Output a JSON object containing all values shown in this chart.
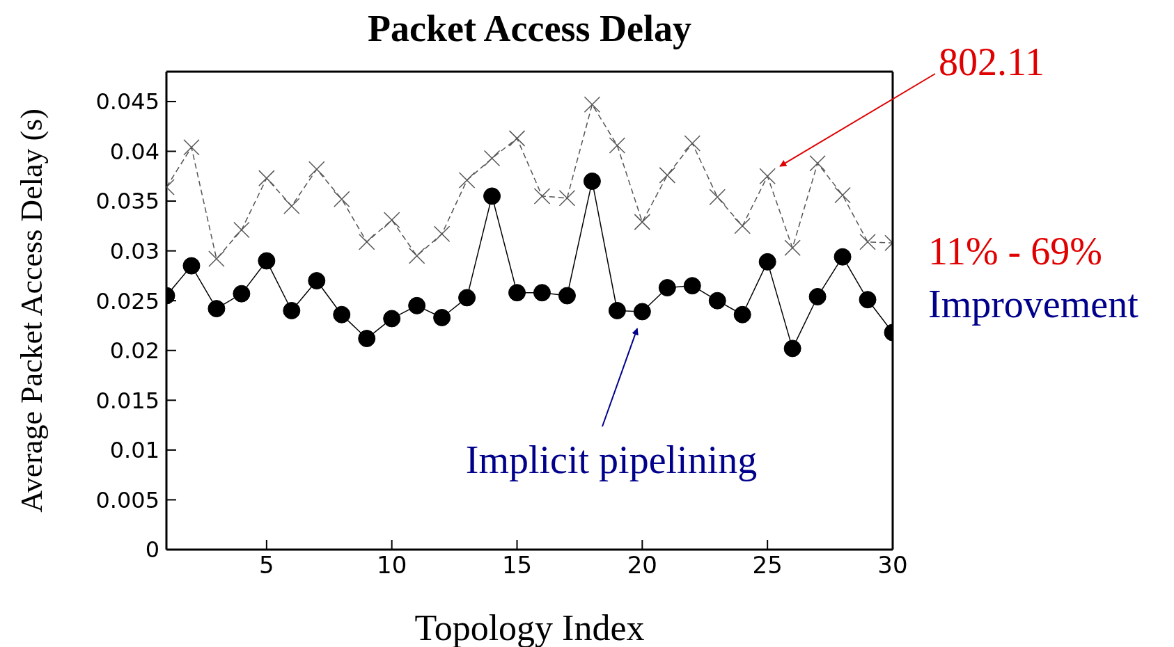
{
  "chart_data": {
    "type": "line",
    "title": "Packet Access Delay",
    "xlabel": "Topology Index",
    "ylabel": "Average Packet Access Delay (s)",
    "x": [
      1,
      2,
      3,
      4,
      5,
      6,
      7,
      8,
      9,
      10,
      11,
      12,
      13,
      14,
      15,
      16,
      17,
      18,
      19,
      20,
      21,
      22,
      23,
      24,
      25,
      26,
      27,
      28,
      29,
      30
    ],
    "series": [
      {
        "name": "802.11",
        "color": "#555555",
        "marker": "cross",
        "line_style": "dashed",
        "values": [
          0.0364,
          0.0404,
          0.0292,
          0.0321,
          0.0373,
          0.0345,
          0.0382,
          0.0352,
          0.0309,
          0.0331,
          0.0295,
          0.0317,
          0.0371,
          0.0393,
          0.0413,
          0.0355,
          0.0353,
          0.0447,
          0.0406,
          0.0329,
          0.0376,
          0.0408,
          0.0354,
          0.0325,
          0.0375,
          0.0303,
          0.0388,
          0.0356,
          0.0309,
          0.0308
        ]
      },
      {
        "name": "Implicit pipelining",
        "color": "#000000",
        "marker": "circle",
        "line_style": "solid",
        "values": [
          0.0255,
          0.0285,
          0.0242,
          0.0257,
          0.029,
          0.024,
          0.027,
          0.0236,
          0.0212,
          0.0232,
          0.0245,
          0.0233,
          0.0253,
          0.0355,
          0.0258,
          0.0258,
          0.0255,
          0.037,
          0.024,
          0.0239,
          0.0263,
          0.0265,
          0.025,
          0.0236,
          0.0289,
          0.0202,
          0.0254,
          0.0294,
          0.0251,
          0.0218
        ]
      }
    ],
    "annotations": [
      "11% - 69%",
      "Improvement"
    ],
    "xlim": [
      1,
      30
    ],
    "xticks": [
      5,
      10,
      15,
      20,
      25,
      30
    ],
    "ylim": [
      0,
      0.048
    ],
    "yticks": [
      0,
      0.005,
      0.01,
      0.015,
      0.02,
      0.025,
      0.03,
      0.035,
      0.04,
      0.045
    ],
    "grid": false,
    "legend": false
  }
}
